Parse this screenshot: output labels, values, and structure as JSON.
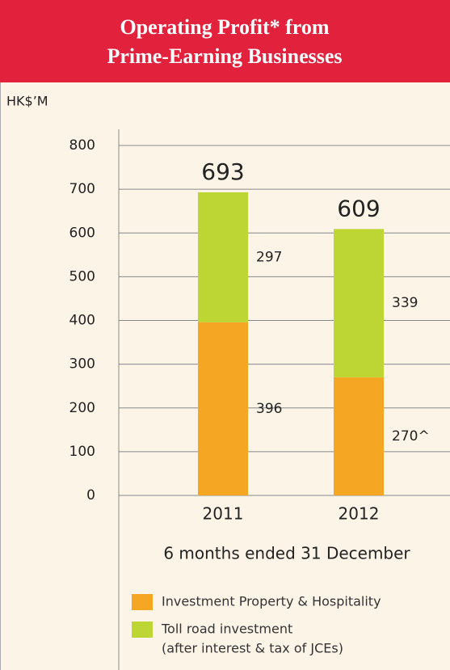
{
  "chart_data": {
    "type": "stacked_bar",
    "title": [
      "Operating Profit* from",
      "Prime-Earning Businesses"
    ],
    "ylabel": "HK$’M",
    "xlabel": "6 months ended 31 December",
    "categories": [
      "2011",
      "2012"
    ],
    "series": [
      {
        "name": "Investment Property & Hospitality",
        "color": "#f5a623",
        "values": [
          396,
          270
        ],
        "value_labels": [
          "396",
          "270^"
        ]
      },
      {
        "name": "Toll road investment",
        "note": "(after interest & tax of JCEs)",
        "color": "#bdd634",
        "values": [
          297,
          339
        ]
      }
    ],
    "totals": [
      693,
      609
    ],
    "ylim": [
      0,
      800
    ],
    "yticks": [
      0,
      100,
      200,
      300,
      400,
      500,
      600,
      700,
      800
    ],
    "grid": true
  }
}
